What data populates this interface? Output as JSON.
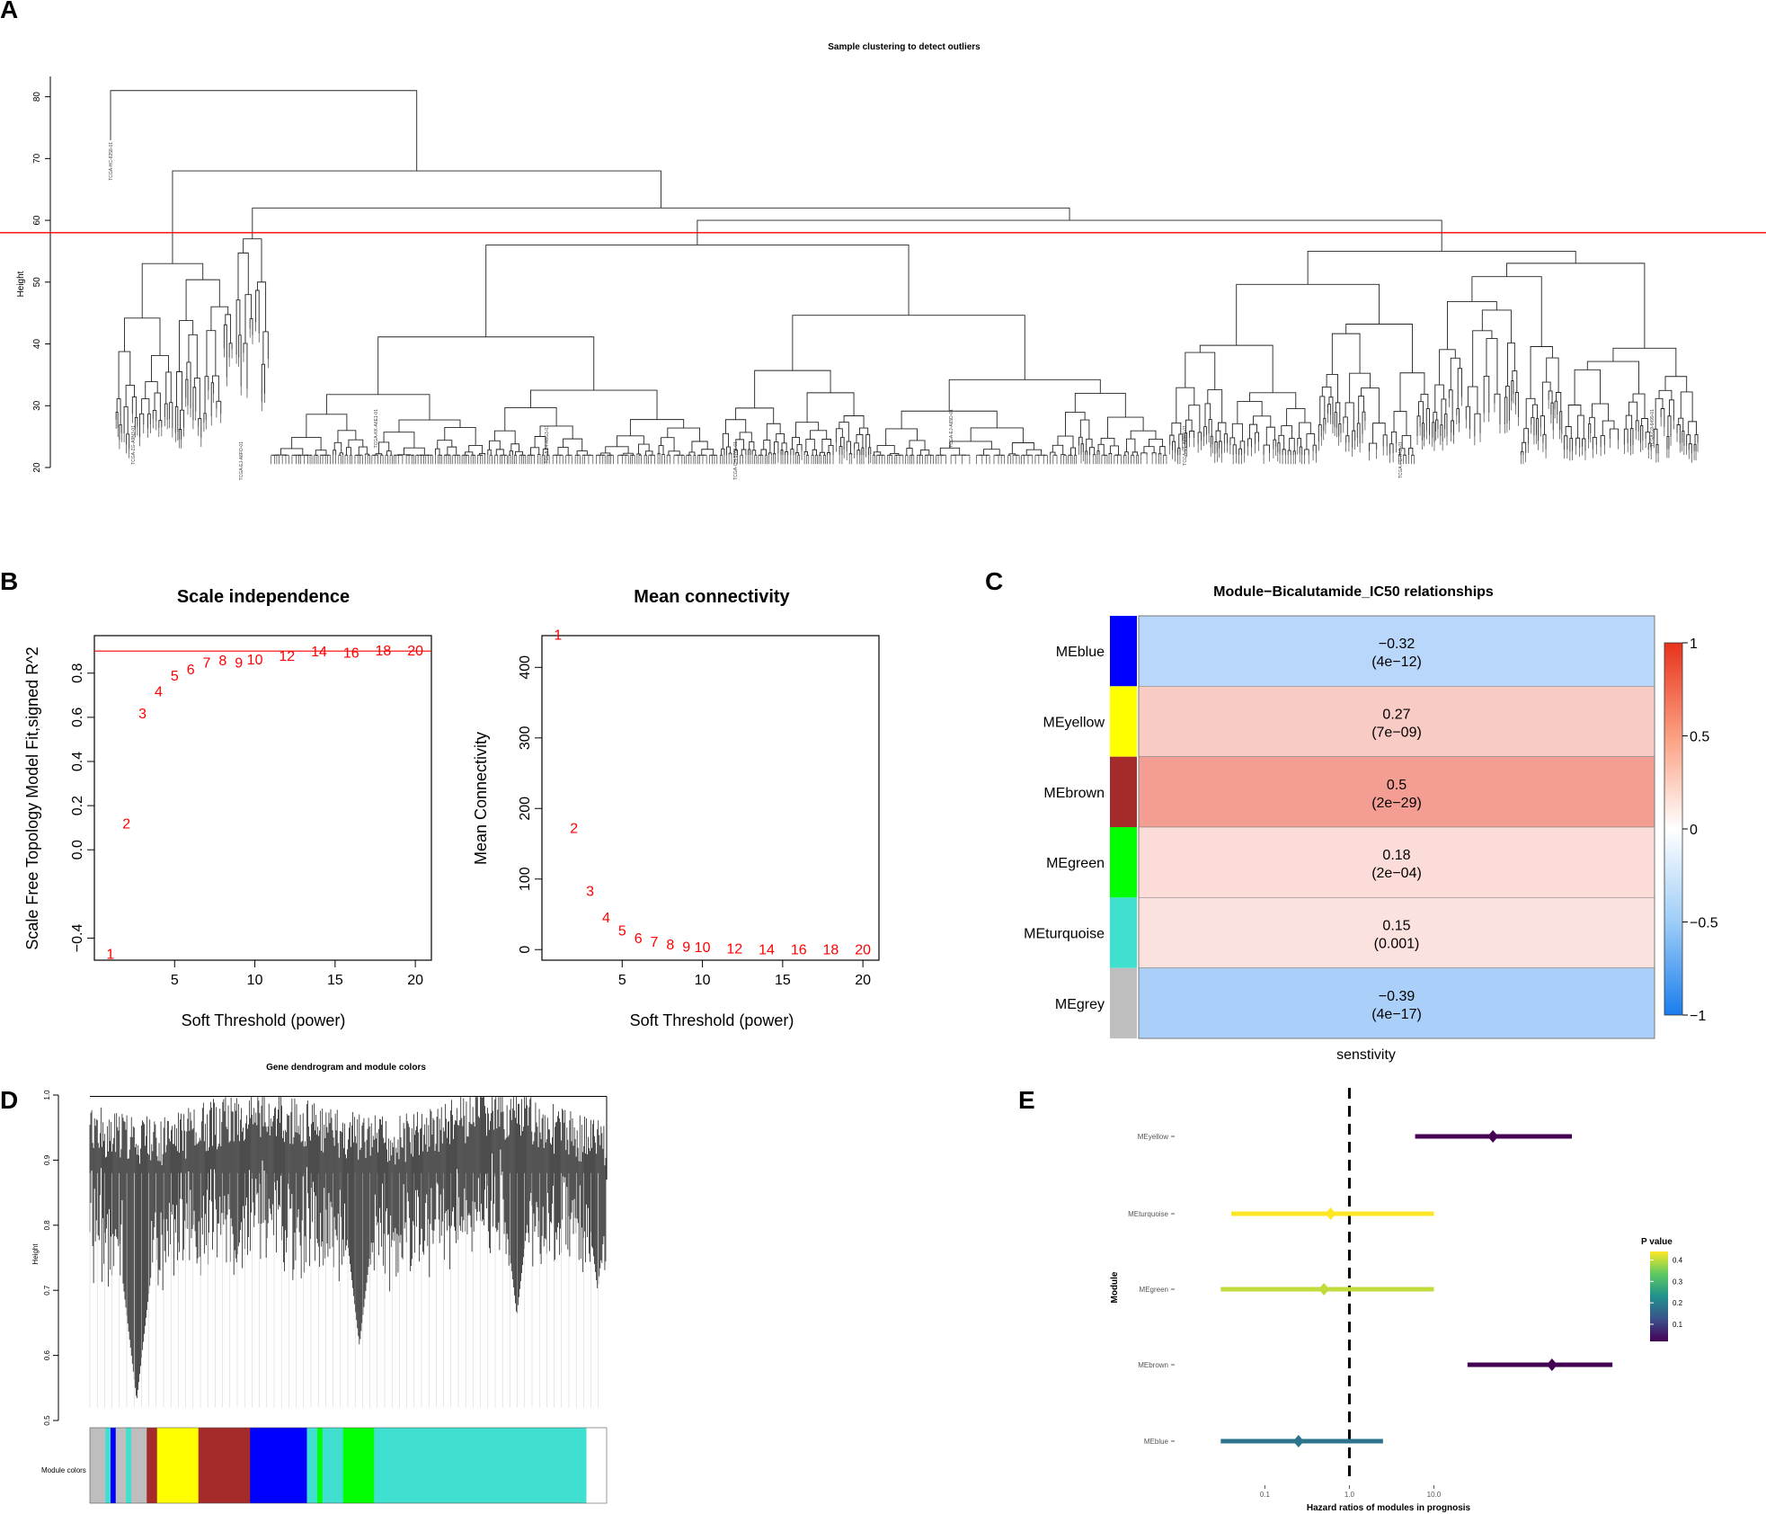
{
  "panel_labels": [
    "A",
    "B",
    "C",
    "D",
    "E"
  ],
  "chart_data": [
    {
      "id": "A",
      "type": "dendrogram",
      "title": "Sample clustering to detect outliers",
      "ylabel": "Height",
      "yticks": [
        20,
        30,
        40,
        50,
        60,
        70,
        80
      ],
      "ylim": [
        20,
        83
      ],
      "cut_height": 58,
      "leaf_labels": [
        "TCGA-HC-8258-01",
        "TCGA-ZG-A9N3-01",
        "TCGA-EJ-A8FO-01",
        "TCGA-KK-A6E1-01",
        "TCGA-J4-A6G3-01",
        "TCGA-CH-5761-01",
        "TCGA-EJ-A65D-01",
        "TCGA-V1-A8WS-01",
        "TCGA-FC-A4JI-01",
        "TCGA-G9-6499-01"
      ]
    },
    {
      "id": "B1",
      "type": "scatter",
      "title": "Scale independence",
      "xlabel": "Soft Threshold (power)",
      "ylabel": "Scale Free Topology Model Fit,signed R^2",
      "xticks": [
        5,
        10,
        15,
        20
      ],
      "yticks": [
        -0.4,
        0.0,
        0.2,
        0.4,
        0.6,
        0.8
      ],
      "xlim": [
        0,
        21
      ],
      "ylim": [
        -0.5,
        0.97
      ],
      "hline": 0.9,
      "points": [
        {
          "x": 1,
          "y": -0.47,
          "label": "1"
        },
        {
          "x": 2,
          "y": 0.12,
          "label": "2"
        },
        {
          "x": 3,
          "y": 0.62,
          "label": "3"
        },
        {
          "x": 4,
          "y": 0.72,
          "label": "4"
        },
        {
          "x": 5,
          "y": 0.79,
          "label": "5"
        },
        {
          "x": 6,
          "y": 0.82,
          "label": "6"
        },
        {
          "x": 7,
          "y": 0.85,
          "label": "7"
        },
        {
          "x": 8,
          "y": 0.86,
          "label": "8"
        },
        {
          "x": 9,
          "y": 0.85,
          "label": "9"
        },
        {
          "x": 10,
          "y": 0.865,
          "label": "10"
        },
        {
          "x": 12,
          "y": 0.88,
          "label": "12"
        },
        {
          "x": 14,
          "y": 0.9,
          "label": "14"
        },
        {
          "x": 16,
          "y": 0.895,
          "label": "16"
        },
        {
          "x": 18,
          "y": 0.905,
          "label": "18"
        },
        {
          "x": 20,
          "y": 0.905,
          "label": "20"
        }
      ]
    },
    {
      "id": "B2",
      "type": "scatter",
      "title": "Mean connectivity",
      "xlabel": "Soft Threshold (power)",
      "ylabel": "Mean Connectivity",
      "xticks": [
        5,
        10,
        15,
        20
      ],
      "yticks": [
        0,
        100,
        200,
        300,
        400
      ],
      "xlim": [
        0,
        21
      ],
      "ylim": [
        -15,
        445
      ],
      "points": [
        {
          "x": 1,
          "y": 447,
          "label": "1"
        },
        {
          "x": 2,
          "y": 173,
          "label": "2"
        },
        {
          "x": 3,
          "y": 84,
          "label": "3"
        },
        {
          "x": 4,
          "y": 46,
          "label": "4"
        },
        {
          "x": 5,
          "y": 28,
          "label": "5"
        },
        {
          "x": 6,
          "y": 17,
          "label": "6"
        },
        {
          "x": 7,
          "y": 12,
          "label": "7"
        },
        {
          "x": 8,
          "y": 8,
          "label": "8"
        },
        {
          "x": 9,
          "y": 5,
          "label": "9"
        },
        {
          "x": 10,
          "y": 4,
          "label": "10"
        },
        {
          "x": 12,
          "y": 2,
          "label": "12"
        },
        {
          "x": 14,
          "y": 1,
          "label": "14"
        },
        {
          "x": 16,
          "y": 1,
          "label": "16"
        },
        {
          "x": 18,
          "y": 1,
          "label": "18"
        },
        {
          "x": 20,
          "y": 1,
          "label": "20"
        }
      ]
    },
    {
      "id": "C",
      "type": "heatmap",
      "title": "Module−Bicalutamide_IC50 relationships",
      "xlabel": "senstivity",
      "rows": [
        {
          "name": "MEblue",
          "module_color": "#0000ff",
          "r": -0.32,
          "r_text": "−0.32",
          "p_text": "(4e−12)"
        },
        {
          "name": "MEyellow",
          "module_color": "#ffff00",
          "r": 0.27,
          "r_text": "0.27",
          "p_text": "(7e−09)"
        },
        {
          "name": "MEbrown",
          "module_color": "#a52a2a",
          "r": 0.5,
          "r_text": "0.5",
          "p_text": "(2e−29)"
        },
        {
          "name": "MEgreen",
          "module_color": "#00ff00",
          "r": 0.18,
          "r_text": "0.18",
          "p_text": "(2e−04)"
        },
        {
          "name": "MEturquoise",
          "module_color": "#40e0d0",
          "r": 0.15,
          "r_text": "0.15",
          "p_text": "(0.001)"
        },
        {
          "name": "MEgrey",
          "module_color": "#bebebe",
          "r": -0.39,
          "r_text": "−0.39",
          "p_text": "(4e−17)"
        }
      ],
      "colorbar_ticks": [
        "1",
        "0.5",
        "0",
        "−0.5",
        "−1"
      ],
      "colorbar_range": [
        -1,
        1
      ]
    },
    {
      "id": "D",
      "type": "dendrogram",
      "title": "Gene dendrogram and module colors",
      "ylabel": "Height",
      "yticks": [
        0.5,
        0.6,
        0.7,
        0.8,
        0.9,
        1.0
      ],
      "ylim": [
        0.5,
        1.0
      ],
      "color_bar_label": "Module colors",
      "module_color_segments": [
        {
          "color": "#bebebe",
          "fraction": 0.03
        },
        {
          "color": "#40e0d0",
          "fraction": 0.01
        },
        {
          "color": "#0000ff",
          "fraction": 0.01
        },
        {
          "color": "#bebebe",
          "fraction": 0.02
        },
        {
          "color": "#40e0d0",
          "fraction": 0.01
        },
        {
          "color": "#bebebe",
          "fraction": 0.03
        },
        {
          "color": "#a52a2a",
          "fraction": 0.02
        },
        {
          "color": "#ffff00",
          "fraction": 0.08
        },
        {
          "color": "#a52a2a",
          "fraction": 0.1
        },
        {
          "color": "#0000ff",
          "fraction": 0.11
        },
        {
          "color": "#40e0d0",
          "fraction": 0.02
        },
        {
          "color": "#00ff00",
          "fraction": 0.01
        },
        {
          "color": "#40e0d0",
          "fraction": 0.04
        },
        {
          "color": "#00ff00",
          "fraction": 0.06
        },
        {
          "color": "#40e0d0",
          "fraction": 0.41
        }
      ]
    },
    {
      "id": "E",
      "type": "forest",
      "xlabel": "Hazard ratios of modules in prognosis",
      "ylabel": "Module",
      "x_scale": "log10",
      "xticks": [
        0.1,
        1.0,
        10.0
      ],
      "xtick_labels": [
        "0.1",
        "1.0",
        "10.0"
      ],
      "xlim": [
        0.015,
        1500
      ],
      "ref_line": 1.0,
      "legend_title": "P value",
      "legend_ticks": [
        "0.4",
        "0.3",
        "0.2",
        "0.1"
      ],
      "legend_range": [
        0.02,
        0.44
      ],
      "rows": [
        {
          "module": "MEyellow",
          "hr": 50,
          "lower": 6,
          "upper": 430,
          "p": 0.02
        },
        {
          "module": "MEturquoise",
          "hr": 0.6,
          "lower": 0.04,
          "upper": 10,
          "p": 0.44
        },
        {
          "module": "MEgreen",
          "hr": 0.5,
          "lower": 0.03,
          "upper": 10,
          "p": 0.4
        },
        {
          "module": "MEbrown",
          "hr": 250,
          "lower": 25,
          "upper": 1300,
          "p": 0.02
        },
        {
          "module": "MEblue",
          "hr": 0.25,
          "lower": 0.03,
          "upper": 2.5,
          "p": 0.18
        }
      ]
    }
  ]
}
